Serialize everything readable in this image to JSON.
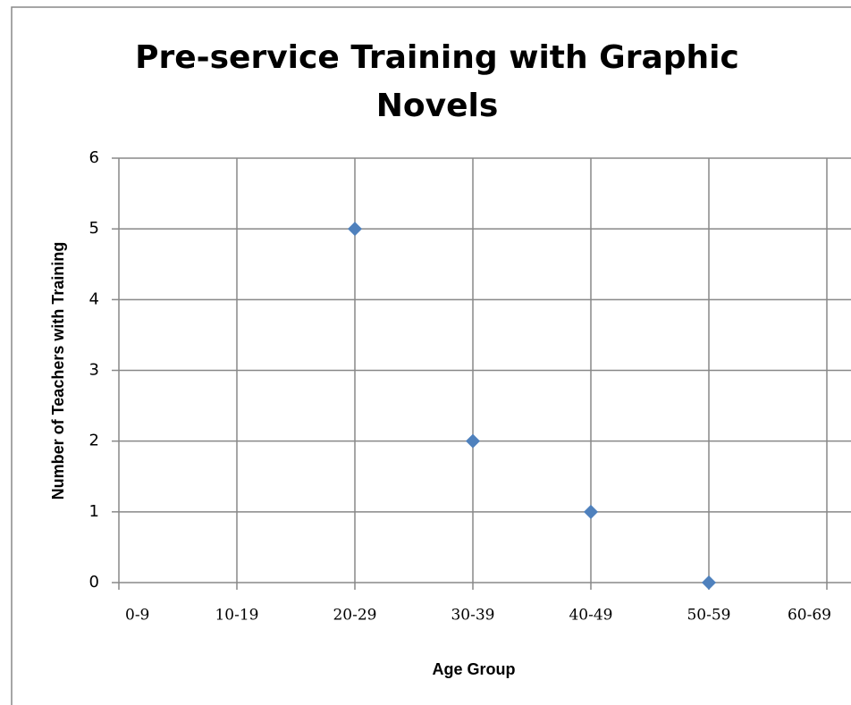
{
  "chart_data": {
    "type": "scatter",
    "title": "Pre-service Training with Graphic Novels",
    "x_label": "Age Group",
    "y_label": "Number of Teachers with Training",
    "categories": [
      "0-9",
      "10-19",
      "20-29",
      "30-39",
      "40-49",
      "50-59",
      "60-69"
    ],
    "values": [
      null,
      null,
      5,
      2,
      1,
      0,
      null
    ],
    "color": "#4f81bd",
    "ylim": [
      0,
      6
    ],
    "yticks": [
      0,
      1,
      2,
      3,
      4,
      5,
      6
    ],
    "grid": true
  }
}
